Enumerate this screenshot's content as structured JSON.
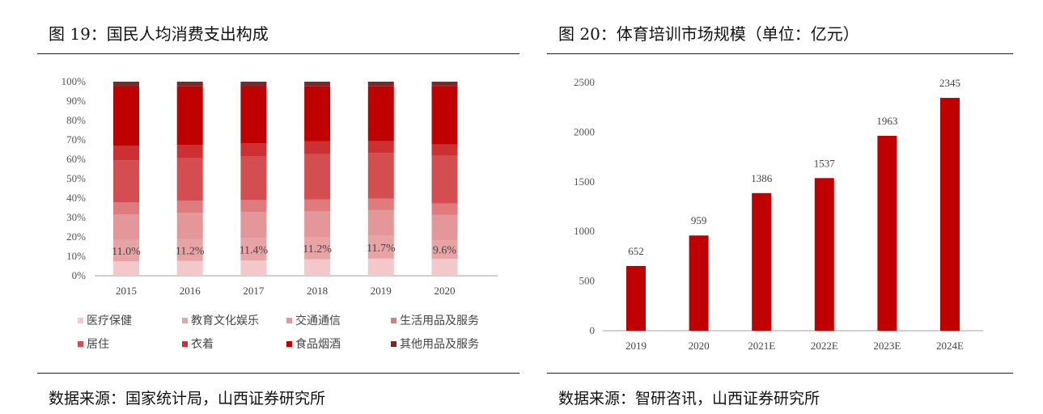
{
  "left": {
    "title": "图 19：国民人均消费支出构成",
    "source": "数据来源：国家统计局，山西证券研究所"
  },
  "right": {
    "title": "图 20：体育培训市场规模（单位：亿元）",
    "source": "数据来源：智研咨讯，山西证券研究所"
  },
  "chart_data": [
    {
      "type": "bar",
      "stacked": true,
      "percent": true,
      "categories": [
        "2015",
        "2016",
        "2017",
        "2018",
        "2019",
        "2020"
      ],
      "ylim": [
        0,
        100
      ],
      "yticks": [
        "0%",
        "10%",
        "20%",
        "30%",
        "40%",
        "50%",
        "60%",
        "70%",
        "80%",
        "90%",
        "100%"
      ],
      "legend": "bottom",
      "series": [
        {
          "name": "医疗保健",
          "color": "#f2c8ca",
          "values": [
            7.4,
            7.6,
            7.9,
            8.5,
            8.8,
            8.7
          ]
        },
        {
          "name": "教育文化娱乐",
          "color": "#e8a3a5",
          "values": [
            11.0,
            11.2,
            11.4,
            11.2,
            11.7,
            9.6
          ],
          "labels": [
            "11.0%",
            "11.2%",
            "11.4%",
            "11.2%",
            "11.7%",
            "9.6%"
          ]
        },
        {
          "name": "交通通信",
          "color": "#e49798",
          "values": [
            13.3,
            13.7,
            13.6,
            13.5,
            13.3,
            13.0
          ]
        },
        {
          "name": "生活用品及服务",
          "color": "#df7b7d",
          "values": [
            6.1,
            6.1,
            6.1,
            6.2,
            6.0,
            5.9
          ]
        },
        {
          "name": "居住",
          "color": "#d44d50",
          "values": [
            21.8,
            21.9,
            22.4,
            23.4,
            23.4,
            24.6
          ]
        },
        {
          "name": "衣着",
          "color": "#cc3033",
          "values": [
            7.4,
            7.0,
            6.8,
            6.5,
            6.2,
            5.8
          ]
        },
        {
          "name": "食品烟酒",
          "color": "#c00000",
          "values": [
            30.6,
            30.1,
            29.3,
            28.4,
            28.2,
            30.2
          ]
        },
        {
          "name": "其他用品及服务",
          "color": "#7b2929",
          "values": [
            2.5,
            2.4,
            2.5,
            2.4,
            2.4,
            2.2
          ]
        }
      ]
    },
    {
      "type": "bar",
      "categories": [
        "2019",
        "2020",
        "2021E",
        "2022E",
        "2023E",
        "2024E"
      ],
      "values": [
        652,
        959,
        1386,
        1537,
        1963,
        2345
      ],
      "ylim": [
        0,
        2500
      ],
      "yticks": [
        "0",
        "500",
        "1000",
        "1500",
        "2000",
        "2500"
      ],
      "color": "#c00000"
    }
  ]
}
